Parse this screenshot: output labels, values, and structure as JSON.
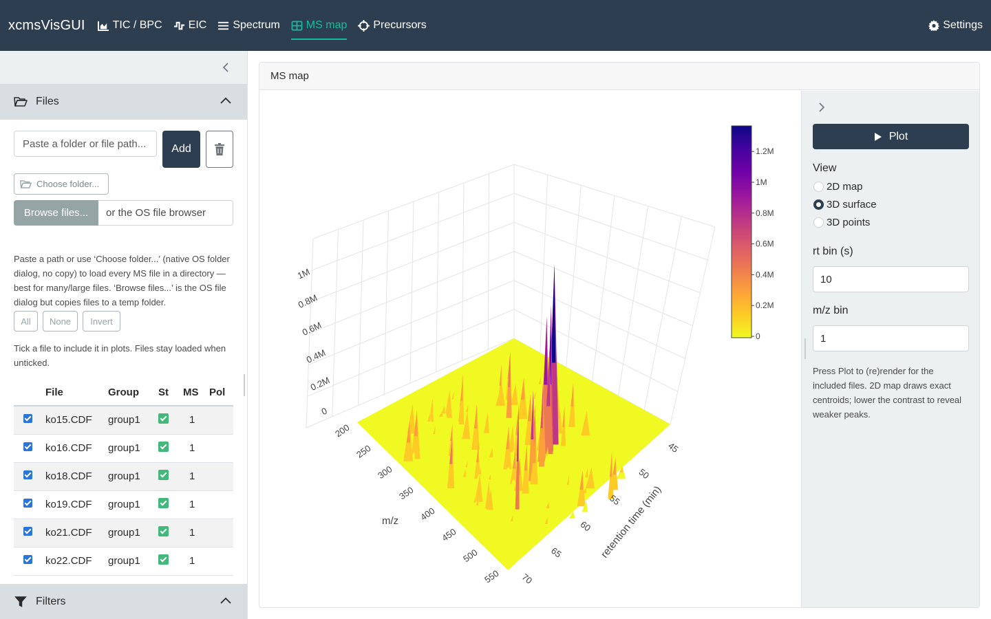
{
  "app": {
    "brand": "xcmsVisGUI",
    "tabs": [
      {
        "label": "TIC / BPC",
        "icon": "area-chart-icon"
      },
      {
        "label": "EIC",
        "icon": "wave-square-icon"
      },
      {
        "label": "Spectrum",
        "icon": "bars-icon"
      },
      {
        "label": "MS map",
        "icon": "grid-table-icon",
        "active": true
      },
      {
        "label": "Precursors",
        "icon": "crosshairs-icon"
      }
    ],
    "settings_label": "Settings",
    "accent_color": "#18bc9c",
    "navbar_color": "#2c3e50"
  },
  "sidebar": {
    "files_title": "Files",
    "path_placeholder": "Paste a folder or file path...",
    "add_label": "Add",
    "choose_folder_label": "Choose folder...",
    "browse_label": "Browse files...",
    "browse_hint": "or the OS file browser",
    "help_text": "Paste a path or use ‘Choose folder...’ (native OS folder dialog, no copy) to load every MS file in a directory — best for many/large files. ‘Browse files...’ is the OS file dialog but copies files to a temp folder.",
    "select_all": "All",
    "select_none": "None",
    "select_invert": "Invert",
    "tick_help": "Tick a file to include it in plots. Files stay loaded when unticked.",
    "table": {
      "headers": {
        "file": "File",
        "group": "Group",
        "status": "St",
        "ms": "MS",
        "pol": "Pol"
      },
      "rows": [
        {
          "file": "ko15.CDF",
          "group": "group1",
          "ms": "1",
          "pol": "",
          "checked": true
        },
        {
          "file": "ko16.CDF",
          "group": "group1",
          "ms": "1",
          "pol": "",
          "checked": true
        },
        {
          "file": "ko18.CDF",
          "group": "group1",
          "ms": "1",
          "pol": "",
          "checked": true
        },
        {
          "file": "ko19.CDF",
          "group": "group1",
          "ms": "1",
          "pol": "",
          "checked": true
        },
        {
          "file": "ko21.CDF",
          "group": "group1",
          "ms": "1",
          "pol": "",
          "checked": true
        },
        {
          "file": "ko22.CDF",
          "group": "group1",
          "ms": "1",
          "pol": "",
          "checked": true
        }
      ]
    },
    "filters_title": "Filters"
  },
  "main": {
    "card_title": "MS map",
    "plot_button": "Plot",
    "view_label": "View",
    "view_options": [
      "2D map",
      "3D surface",
      "3D points"
    ],
    "view_selected": "3D surface",
    "rt_bin_label": "rt bin (s)",
    "rt_bin_value": "10",
    "mz_bin_label": "m/z bin",
    "mz_bin_value": "1",
    "help_text": "Press Plot to (re)render for the included files. 2D map draws exact centroids; lower the contrast to reveal weaker peaks."
  },
  "plot": {
    "x_axis_label": "m/z",
    "y_axis_label": "retention time (min)",
    "x_ticks": [
      "200",
      "250",
      "300",
      "350",
      "400",
      "450",
      "500",
      "550"
    ],
    "y_ticks": [
      "45",
      "50",
      "55",
      "60",
      "65",
      "70"
    ],
    "z_ticks": [
      "0",
      "0.2M",
      "0.4M",
      "0.6M",
      "0.8M",
      "1M"
    ],
    "colorbar_ticks": [
      "0",
      "0.2M",
      "0.4M",
      "0.6M",
      "0.8M",
      "1M",
      "1.2M"
    ],
    "colorscale": [
      "#f0f921",
      "#fdca26",
      "#fb9f3a",
      "#ed7953",
      "#d8576b",
      "#bd3786",
      "#9c179e",
      "#7201a8",
      "#46039f",
      "#0d0887"
    ]
  }
}
